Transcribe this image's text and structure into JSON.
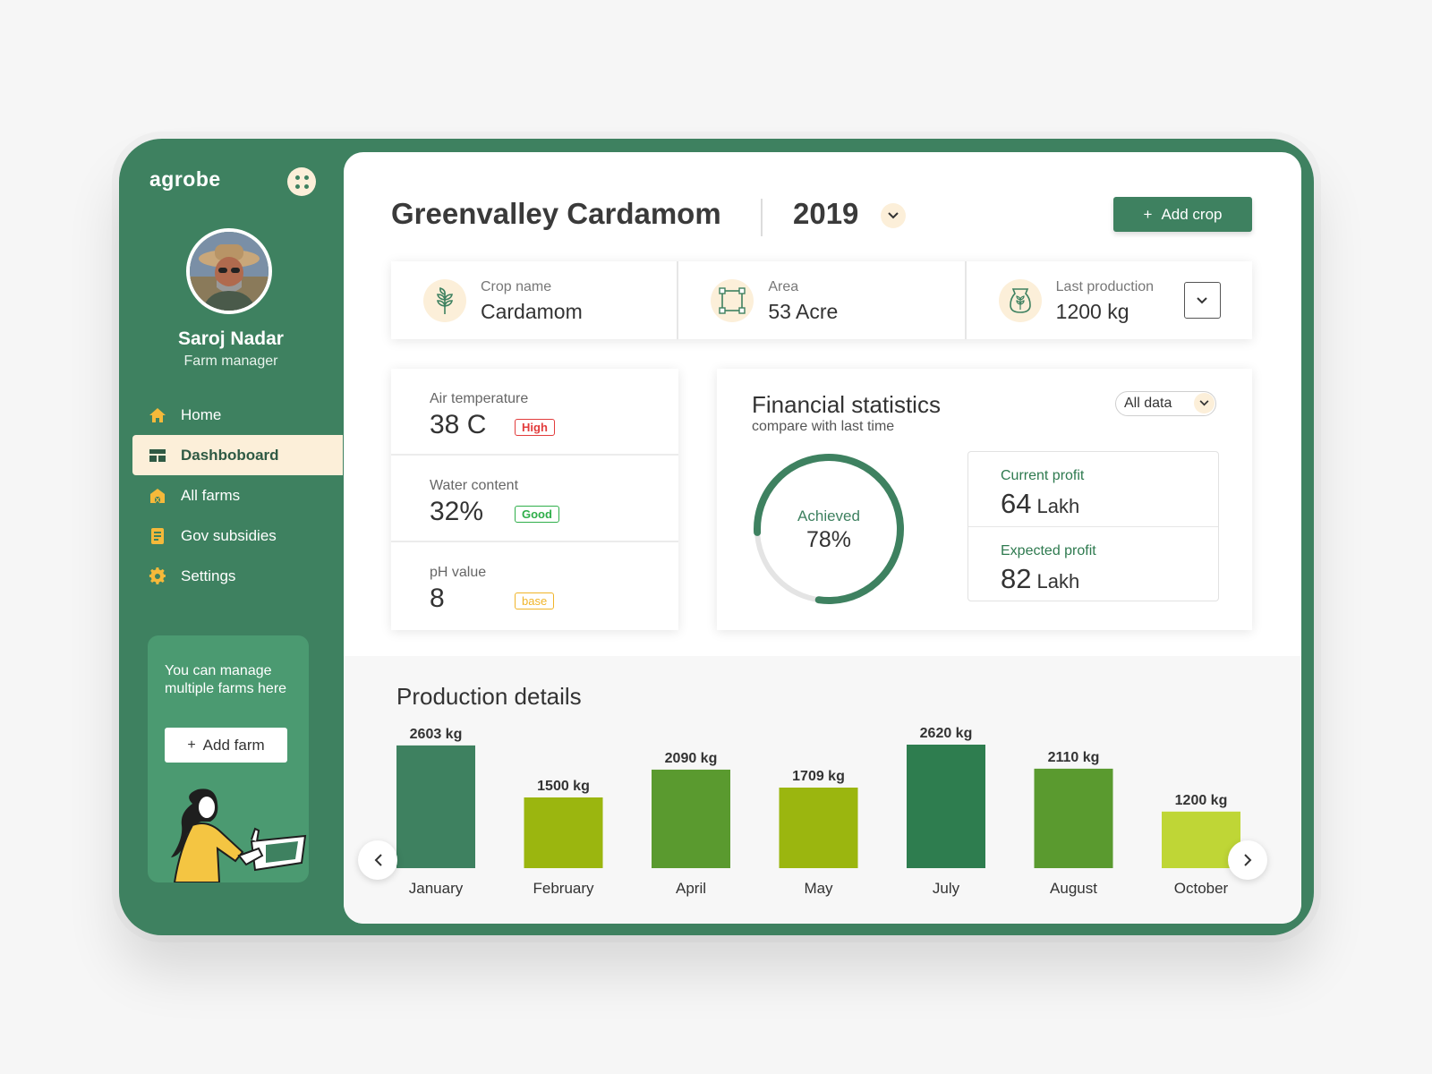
{
  "app": {
    "brand": "agrobe"
  },
  "user": {
    "name": "Saroj Nadar",
    "role": "Farm manager"
  },
  "sidebar": {
    "items": [
      {
        "label": "Home",
        "icon": "home-icon",
        "active": false
      },
      {
        "label": "Dashboboard",
        "icon": "dashboard-icon",
        "active": true
      },
      {
        "label": "All farms",
        "icon": "farm-icon",
        "active": false
      },
      {
        "label": "Gov subsidies",
        "icon": "document-icon",
        "active": false
      },
      {
        "label": "Settings",
        "icon": "gear-icon",
        "active": false
      }
    ],
    "promo": {
      "text": "You can manage multiple farms here",
      "button_label": "Add farm"
    }
  },
  "header": {
    "title": "Greenvalley Cardamom",
    "year": "2019",
    "add_crop_label": "Add crop"
  },
  "crop_info": [
    {
      "label": "Crop name",
      "value": "Cardamom",
      "icon": "wheat-icon"
    },
    {
      "label": "Area",
      "value": "53 Acre",
      "icon": "area-icon"
    },
    {
      "label": "Last production",
      "value": "1200 kg",
      "icon": "sack-icon"
    }
  ],
  "metrics": [
    {
      "label": "Air temperature",
      "value": "38 C",
      "badge": "High",
      "badge_color": "#e23c3c"
    },
    {
      "label": "Water content",
      "value": "32%",
      "badge": "Good",
      "badge_color": "#2fae4a"
    },
    {
      "label": "pH value",
      "value": "8",
      "badge": "base",
      "badge_color": "#f0b429"
    }
  ],
  "financial": {
    "title": "Financial statistics",
    "subtitle": "compare with last time",
    "filter": "All data",
    "achieved_label": "Achieved",
    "achieved_value": "78%",
    "achieved_fraction": 0.78,
    "current_profit_label": "Current profit",
    "current_profit_value": "64",
    "current_profit_unit": "Lakh",
    "expected_profit_label": "Expected profit",
    "expected_profit_value": "82",
    "expected_profit_unit": "Lakh"
  },
  "production": {
    "title": "Production details"
  },
  "chart_data": {
    "type": "bar",
    "categories": [
      "January",
      "February",
      "April",
      "May",
      "July",
      "August",
      "October"
    ],
    "values": [
      2603,
      1500,
      2090,
      1709,
      2620,
      2110,
      1200
    ],
    "value_labels": [
      "2603 kg",
      "1500 kg",
      "2090 kg",
      "1709 kg",
      "2620 kg",
      "2110 kg",
      "1200 kg"
    ],
    "colors": [
      "#3e8160",
      "#9bb60f",
      "#5a9a2f",
      "#9bb60f",
      "#2e7d4f",
      "#5a9a2f",
      "#bfd636"
    ],
    "title": "Production details",
    "unit": "kg",
    "ylim": [
      0,
      2620
    ]
  },
  "colors": {
    "primary": "#3e8160",
    "accent_cream": "#fcefd9"
  }
}
